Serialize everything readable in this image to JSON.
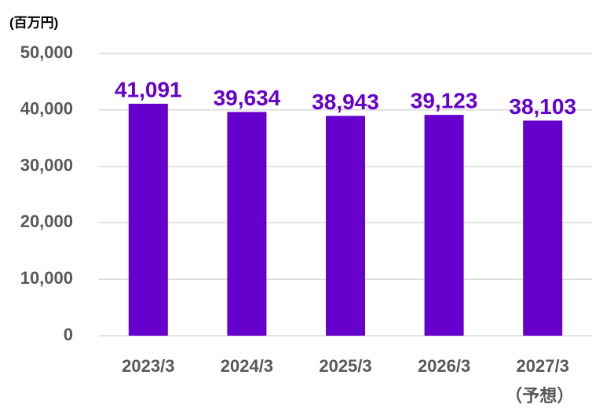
{
  "chart_data": {
    "type": "bar",
    "unit_label": "(百万円)",
    "categories": [
      "2023/3",
      "2024/3",
      "2025/3",
      "2026/3",
      "2027/3"
    ],
    "category_note": "（予想）",
    "values": [
      41091,
      39634,
      38943,
      39123,
      38103
    ],
    "value_labels": [
      "41,091",
      "39,634",
      "38,943",
      "39,123",
      "38,103"
    ],
    "color": "#6600cc",
    "ylim": [
      0,
      50000
    ],
    "yticks": [
      0,
      {
        "value": 10000,
        "label": "10,000"
      },
      {
        "value": 20000,
        "label": "20,000"
      },
      {
        "value": 30000,
        "label": "30,000"
      },
      {
        "value": 40000,
        "label": "40,000"
      },
      {
        "value": 50000,
        "label": "50,000"
      }
    ],
    "grid": true
  }
}
